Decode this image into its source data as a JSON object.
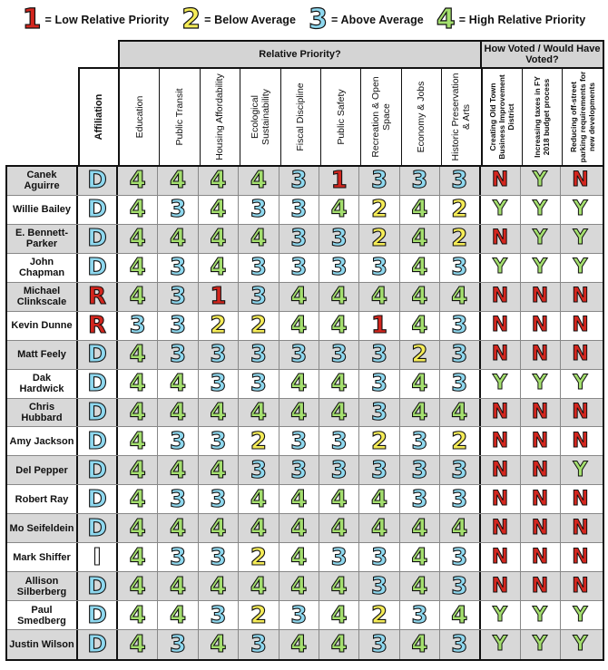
{
  "legend": [
    {
      "num": "1",
      "label": "= Low Relative Priority",
      "color": "#d3261e"
    },
    {
      "num": "2",
      "label": "= Below Average",
      "color": "#f5ec57"
    },
    {
      "num": "3",
      "label": "= Above Average",
      "color": "#8ed8ef"
    },
    {
      "num": "4",
      "label": "= High Relative Priority",
      "color": "#a4df6e"
    }
  ],
  "headers": {
    "relative_priority": "Relative Priority?",
    "how_voted": "How Voted / Would Have Voted?",
    "affiliation": "Affiliation",
    "priorities": [
      "Education",
      "Public Transit",
      "Housing Affordability",
      "Ecological Sustainability",
      "Fiscal Discipline",
      "Public Safety",
      "Recreation & Open Space",
      "Economy & Jobs",
      "Historic Preservation & Arts"
    ],
    "votes": [
      "Creating Old Town Business Improvement District",
      "Increasing taxes in FY 2018 budget process",
      "Reducing off-street parking requirements for new developments"
    ]
  },
  "colors": {
    "low": "#d3261e",
    "below": "#f5ec57",
    "above": "#8ed8ef",
    "high": "#a4df6e",
    "democrat": "#8ed8ef",
    "republican": "#d3261e",
    "independent": "#ffffff",
    "yes": "#a4df6e",
    "no": "#d3261e",
    "row_shade": "#d8d8d8"
  },
  "candidates": [
    {
      "name": "Canek Aguirre",
      "affiliation": "D",
      "priorities": [
        "4",
        "4",
        "4",
        "4",
        "3",
        "1",
        "3",
        "3",
        "3"
      ],
      "votes": [
        "N",
        "Y",
        "N"
      ]
    },
    {
      "name": "Willie Bailey",
      "affiliation": "D",
      "priorities": [
        "4",
        "3",
        "4",
        "3",
        "3",
        "4",
        "2",
        "4",
        "2"
      ],
      "votes": [
        "Y",
        "Y",
        "Y"
      ]
    },
    {
      "name": "E. Bennett-Parker",
      "affiliation": "D",
      "priorities": [
        "4",
        "4",
        "4",
        "4",
        "3",
        "3",
        "2",
        "4",
        "2"
      ],
      "votes": [
        "N",
        "Y",
        "Y"
      ]
    },
    {
      "name": "John Chapman",
      "affiliation": "D",
      "priorities": [
        "4",
        "3",
        "4",
        "3",
        "3",
        "3",
        "3",
        "4",
        "3"
      ],
      "votes": [
        "Y",
        "Y",
        "Y"
      ]
    },
    {
      "name": "Michael Clinkscale",
      "affiliation": "R",
      "priorities": [
        "4",
        "3",
        "1",
        "3",
        "4",
        "4",
        "4",
        "4",
        "4"
      ],
      "votes": [
        "N",
        "N",
        "N"
      ]
    },
    {
      "name": "Kevin Dunne",
      "affiliation": "R",
      "priorities": [
        "3",
        "3",
        "2",
        "2",
        "4",
        "4",
        "1",
        "4",
        "3"
      ],
      "votes": [
        "N",
        "N",
        "N"
      ]
    },
    {
      "name": "Matt Feely",
      "affiliation": "D",
      "priorities": [
        "4",
        "3",
        "3",
        "3",
        "3",
        "3",
        "3",
        "2",
        "3"
      ],
      "votes": [
        "N",
        "N",
        "N"
      ]
    },
    {
      "name": "Dak Hardwick",
      "affiliation": "D",
      "priorities": [
        "4",
        "4",
        "3",
        "3",
        "4",
        "4",
        "3",
        "4",
        "3"
      ],
      "votes": [
        "Y",
        "Y",
        "Y"
      ]
    },
    {
      "name": "Chris Hubbard",
      "affiliation": "D",
      "priorities": [
        "4",
        "4",
        "4",
        "4",
        "4",
        "4",
        "3",
        "4",
        "4"
      ],
      "votes": [
        "N",
        "N",
        "N"
      ]
    },
    {
      "name": "Amy Jackson",
      "affiliation": "D",
      "priorities": [
        "4",
        "3",
        "3",
        "2",
        "3",
        "3",
        "2",
        "3",
        "2"
      ],
      "votes": [
        "N",
        "N",
        "N"
      ]
    },
    {
      "name": "Del Pepper",
      "affiliation": "D",
      "priorities": [
        "4",
        "4",
        "4",
        "3",
        "3",
        "3",
        "3",
        "3",
        "3"
      ],
      "votes": [
        "N",
        "N",
        "Y"
      ]
    },
    {
      "name": "Robert Ray",
      "affiliation": "D",
      "priorities": [
        "4",
        "3",
        "3",
        "4",
        "4",
        "4",
        "4",
        "3",
        "3"
      ],
      "votes": [
        "N",
        "N",
        "N"
      ]
    },
    {
      "name": "Mo Seifeldein",
      "affiliation": "D",
      "priorities": [
        "4",
        "4",
        "4",
        "4",
        "4",
        "4",
        "4",
        "4",
        "4"
      ],
      "votes": [
        "N",
        "N",
        "N"
      ]
    },
    {
      "name": "Mark Shiffer",
      "affiliation": "I",
      "priorities": [
        "4",
        "3",
        "3",
        "2",
        "4",
        "3",
        "3",
        "4",
        "3"
      ],
      "votes": [
        "N",
        "N",
        "N"
      ]
    },
    {
      "name": "Allison Silberberg",
      "affiliation": "D",
      "priorities": [
        "4",
        "4",
        "4",
        "4",
        "4",
        "4",
        "3",
        "4",
        "3"
      ],
      "votes": [
        "N",
        "N",
        "N"
      ]
    },
    {
      "name": "Paul Smedberg",
      "affiliation": "D",
      "priorities": [
        "4",
        "4",
        "3",
        "2",
        "3",
        "4",
        "2",
        "3",
        "4"
      ],
      "votes": [
        "Y",
        "Y",
        "Y"
      ]
    },
    {
      "name": "Justin Wilson",
      "affiliation": "D",
      "priorities": [
        "4",
        "3",
        "4",
        "3",
        "4",
        "4",
        "3",
        "4",
        "3"
      ],
      "votes": [
        "Y",
        "Y",
        "Y"
      ]
    }
  ]
}
